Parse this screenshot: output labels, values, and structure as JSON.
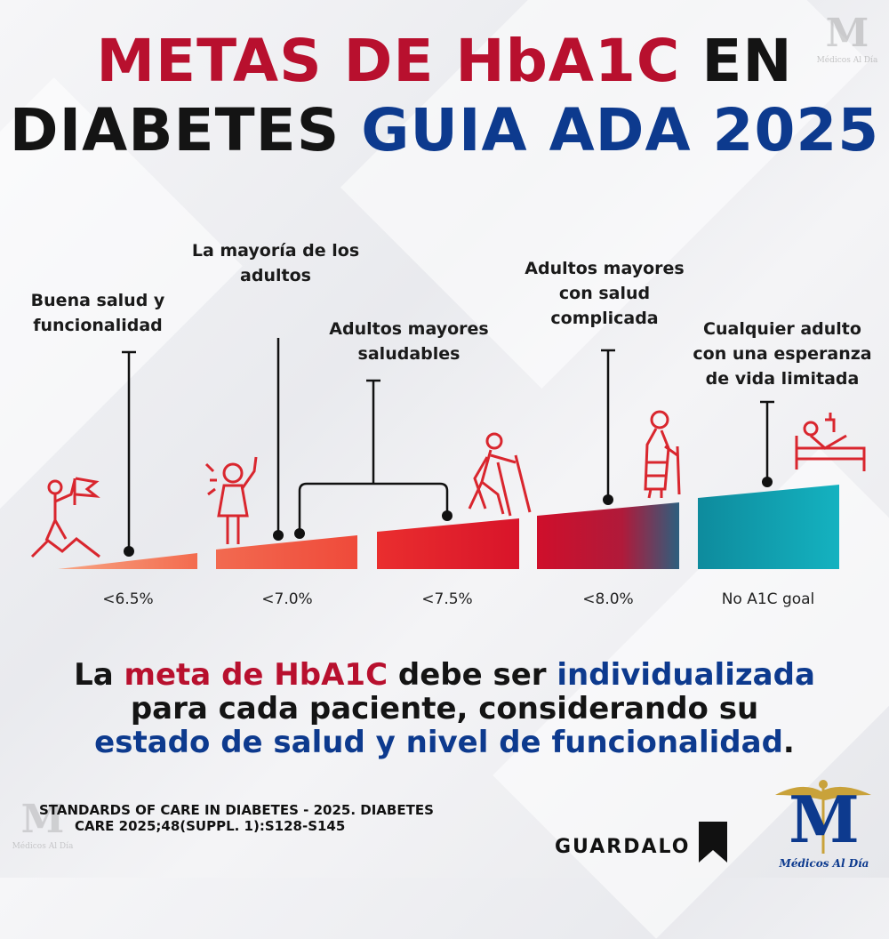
{
  "title": {
    "line1_red": "METAS DE HbA1C",
    "line1_black": "EN",
    "line2_black": "DIABETES",
    "line2_blue": "GUIA ADA 2025"
  },
  "groups": [
    {
      "label": "Buena salud y funcionalidad",
      "tick": "<6.5%",
      "icon": "climber-flag-icon"
    },
    {
      "label": "La mayoría de los adultos",
      "tick": "<7.0%",
      "icon": "person-waving-icon"
    },
    {
      "label": "Adultos mayores saludables",
      "tick": "<7.5%",
      "icon": "walker-poles-icon"
    },
    {
      "label": "Adultos mayores con salud complicada",
      "tick": "<8.0%",
      "icon": "elderly-cane-icon"
    },
    {
      "label": "Cualquier adulto con una esperanza de vida limitada",
      "tick": "No A1C goal",
      "icon": "hospital-bed-icon"
    }
  ],
  "message": {
    "p1": "La ",
    "p2_red": "meta de HbA1C",
    "p3": " debe ser ",
    "p4_blue": "individualizada",
    "line2": "para cada paciente, considerando su",
    "line3_blue": "estado de salud y nivel de funcionalidad",
    "line3_end": "."
  },
  "source": {
    "line1": "STANDARDS OF CARE IN DIABETES - 2025. DIABETES",
    "line2": "CARE 2025;48(SUPPL. 1):S128-S145"
  },
  "save_label": "GUARDALO",
  "brand": {
    "watermark_text": "Médicos Al Día",
    "logo_letter": "M",
    "logo_text": "Médicos Al Día"
  },
  "colors": {
    "red": "#b8102e",
    "blue": "#0d3a8e",
    "teal": "#0fa6b6"
  }
}
